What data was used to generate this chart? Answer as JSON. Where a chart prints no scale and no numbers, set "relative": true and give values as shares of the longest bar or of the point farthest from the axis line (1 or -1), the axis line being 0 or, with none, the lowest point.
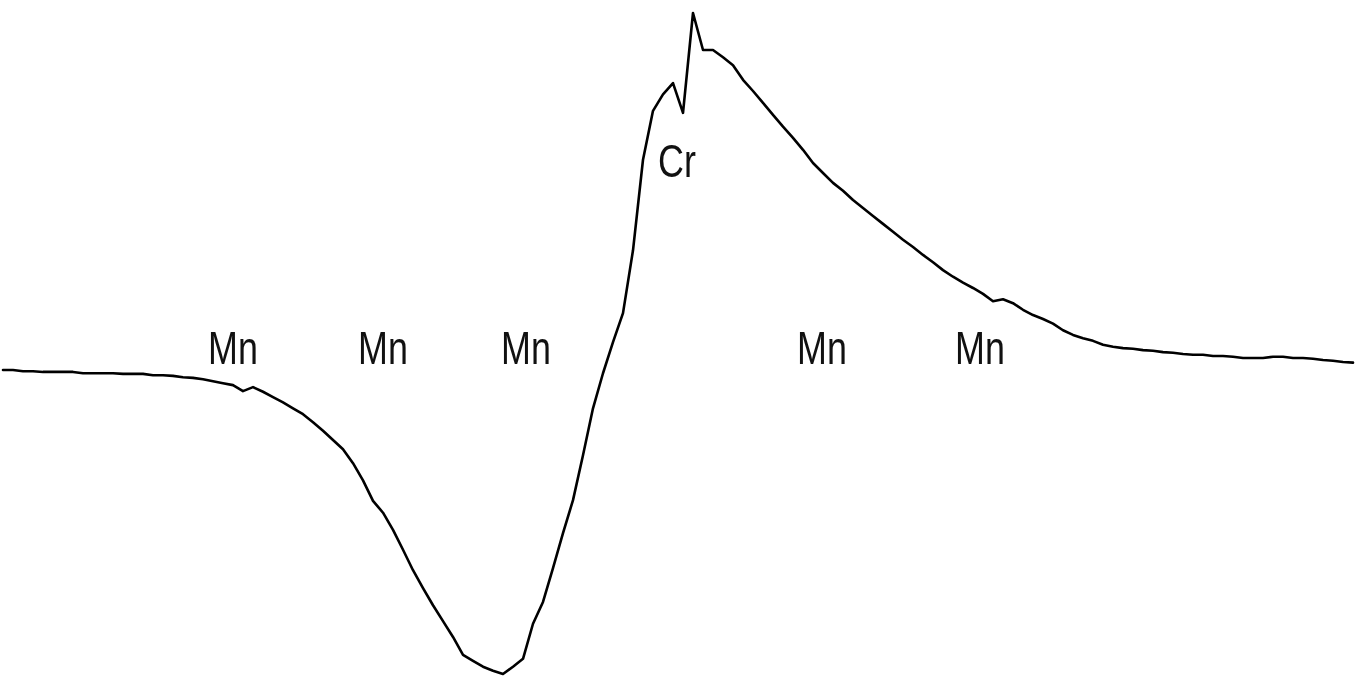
{
  "chart_data": {
    "type": "line",
    "relative": true,
    "color": "#000000",
    "categories": [
      null,
      null,
      null,
      null,
      null,
      null,
      null,
      null,
      null,
      null,
      null,
      null,
      null,
      null,
      null,
      null,
      null,
      null,
      null,
      null,
      null,
      null,
      null,
      null,
      null,
      null,
      null,
      null,
      null,
      null,
      null,
      null,
      null,
      null,
      null,
      null,
      null,
      null,
      null,
      null,
      null,
      null,
      null,
      null,
      null,
      null,
      null,
      null,
      null,
      null,
      null,
      null,
      null,
      null,
      null,
      null,
      null,
      null,
      null,
      null,
      null,
      null,
      null,
      null,
      null,
      null,
      null,
      null,
      null,
      null,
      null,
      null,
      null,
      null,
      null,
      null,
      null,
      null,
      null,
      null,
      null,
      null,
      null,
      null,
      null,
      null,
      null,
      null,
      null,
      null,
      null,
      null,
      null,
      null,
      null,
      null,
      null,
      null,
      null,
      null,
      null,
      null,
      null,
      null,
      null,
      null,
      null,
      null,
      null,
      null,
      null,
      null,
      null,
      null,
      null,
      null,
      null,
      null,
      null,
      null,
      null,
      null,
      null,
      null,
      null,
      null,
      null,
      null,
      null,
      null,
      null,
      null,
      null,
      null,
      null,
      null
    ],
    "values": [
      0.46,
      0.46,
      0.458,
      0.458,
      0.457,
      0.457,
      0.457,
      0.457,
      0.455,
      0.455,
      0.455,
      0.455,
      0.454,
      0.454,
      0.454,
      0.452,
      0.452,
      0.451,
      0.449,
      0.448,
      0.446,
      0.443,
      0.44,
      0.437,
      0.428,
      0.434,
      0.427,
      0.419,
      0.411,
      0.402,
      0.393,
      0.381,
      0.368,
      0.354,
      0.34,
      0.319,
      0.293,
      0.262,
      0.244,
      0.218,
      0.188,
      0.157,
      0.13,
      0.104,
      0.08,
      0.056,
      0.029,
      0.02,
      0.011,
      0.005,
      0,
      0.011,
      0.023,
      0.076,
      0.109,
      0.16,
      0.213,
      0.263,
      0.331,
      0.402,
      0.455,
      0.502,
      0.546,
      0.641,
      0.778,
      0.852,
      0.877,
      0.894,
      0.849,
      1,
      0.944,
      0.944,
      0.933,
      0.921,
      0.899,
      0.882,
      0.864,
      0.846,
      0.828,
      0.811,
      0.793,
      0.773,
      0.758,
      0.743,
      0.731,
      0.717,
      0.705,
      0.693,
      0.681,
      0.669,
      0.657,
      0.646,
      0.634,
      0.623,
      0.611,
      0.601,
      0.592,
      0.584,
      0.575,
      0.564,
      0.567,
      0.561,
      0.551,
      0.543,
      0.537,
      0.53,
      0.52,
      0.513,
      0.508,
      0.504,
      0.498,
      0.495,
      0.493,
      0.492,
      0.49,
      0.489,
      0.487,
      0.486,
      0.484,
      0.483,
      0.483,
      0.481,
      0.481,
      0.48,
      0.478,
      0.478,
      0.478,
      0.48,
      0.48,
      0.478,
      0.478,
      0.477,
      0.475,
      0.474,
      0.472,
      0.471
    ],
    "annotations": [
      "Mn",
      "Mn",
      "Mn",
      "Cr",
      "Mn",
      "Mn"
    ]
  }
}
